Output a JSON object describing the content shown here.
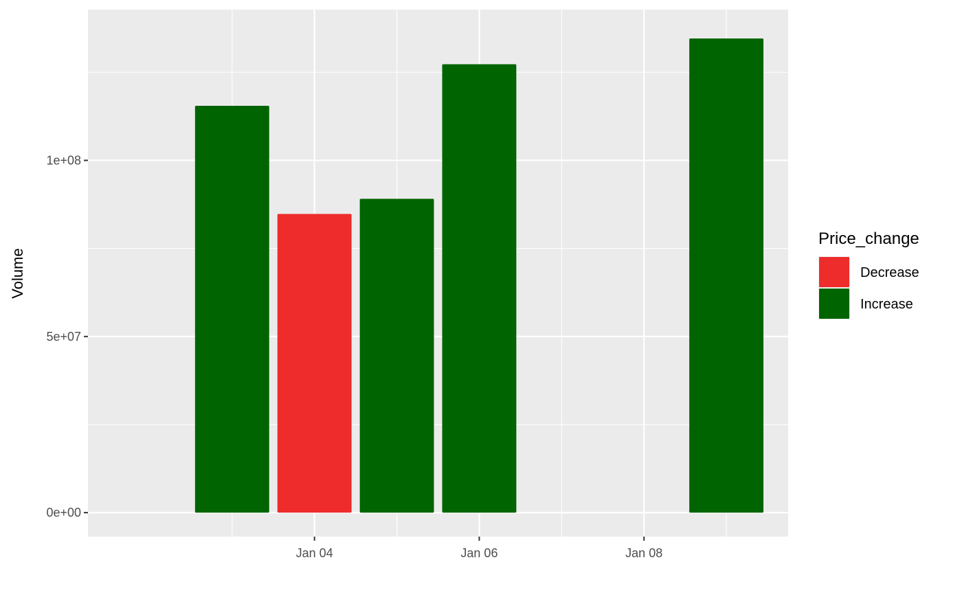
{
  "chart_data": {
    "type": "bar",
    "title": "",
    "xlabel": "",
    "ylabel": "Volume",
    "x_axis": {
      "type": "date",
      "range": [
        "2024-01-02",
        "2024-01-09"
      ],
      "ticks": [
        {
          "date": "2024-01-04",
          "label": "Jan 04"
        },
        {
          "date": "2024-01-06",
          "label": "Jan 06"
        },
        {
          "date": "2024-01-08",
          "label": "Jan 08"
        }
      ],
      "minor_ticks": [
        "2024-01-03",
        "2024-01-05",
        "2024-01-07",
        "2024-01-09"
      ]
    },
    "ylim": [
      0,
      136000000
    ],
    "y_ticks": [
      {
        "value": 0,
        "label": "0e+00"
      },
      {
        "value": 50000000,
        "label": "5e+07"
      },
      {
        "value": 100000000,
        "label": "1e+08"
      }
    ],
    "y_minor_ticks": [
      25000000,
      75000000,
      125000000
    ],
    "grid": true,
    "legend": {
      "title": "Price_change",
      "position": "right",
      "entries": [
        {
          "label": "Decrease",
          "color": "#EE2C2C"
        },
        {
          "label": "Increase",
          "color": "#006400"
        }
      ]
    },
    "bars": [
      {
        "date": "2024-01-03",
        "value": 115500000,
        "category": "Increase"
      },
      {
        "date": "2024-01-04",
        "value": 84800000,
        "category": "Decrease"
      },
      {
        "date": "2024-01-05",
        "value": 89100000,
        "category": "Increase"
      },
      {
        "date": "2024-01-06",
        "value": 127300000,
        "category": "Increase"
      },
      {
        "date": "2024-01-09",
        "value": 134600000,
        "category": "Increase"
      }
    ],
    "colors": {
      "Decrease": "#EE2C2C",
      "Increase": "#006400",
      "panel_background": "#EBEBEB",
      "grid": "#FFFFFF"
    }
  }
}
